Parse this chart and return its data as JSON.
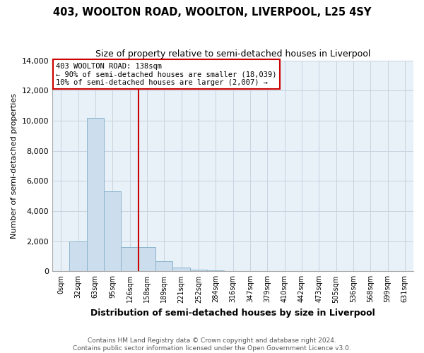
{
  "title": "403, WOOLTON ROAD, WOOLTON, LIVERPOOL, L25 4SY",
  "subtitle": "Size of property relative to semi-detached houses in Liverpool",
  "bar_labels": [
    "0sqm",
    "32sqm",
    "63sqm",
    "95sqm",
    "126sqm",
    "158sqm",
    "189sqm",
    "221sqm",
    "252sqm",
    "284sqm",
    "316sqm",
    "347sqm",
    "379sqm",
    "410sqm",
    "442sqm",
    "473sqm",
    "505sqm",
    "536sqm",
    "568sqm",
    "599sqm",
    "631sqm"
  ],
  "bar_values": [
    0,
    2000,
    10200,
    5300,
    1600,
    1600,
    650,
    230,
    130,
    50,
    0,
    0,
    0,
    0,
    0,
    0,
    0,
    0,
    0,
    0,
    0
  ],
  "bar_color": "#ccdded",
  "bar_edge_color": "#8ab4cc",
  "annotation_title": "403 WOOLTON ROAD: 138sqm",
  "annotation_line1": "← 90% of semi-detached houses are smaller (18,039)",
  "annotation_line2": "10% of semi-detached houses are larger (2,007) →",
  "vline_x": 4.5,
  "xlabel": "Distribution of semi-detached houses by size in Liverpool",
  "ylabel": "Number of semi-detached properties",
  "ylim": [
    0,
    14000
  ],
  "yticks": [
    0,
    2000,
    4000,
    6000,
    8000,
    10000,
    12000,
    14000
  ],
  "footnote1": "Contains HM Land Registry data © Crown copyright and database right 2024.",
  "footnote2": "Contains public sector information licensed under the Open Government Licence v3.0.",
  "title_fontsize": 10.5,
  "subtitle_fontsize": 9,
  "annotation_box_color": "#ffffff",
  "annotation_box_edge": "#cc0000",
  "vline_color": "#cc0000",
  "bg_color": "#e8f0f8",
  "grid_color": "#c8d4e0"
}
